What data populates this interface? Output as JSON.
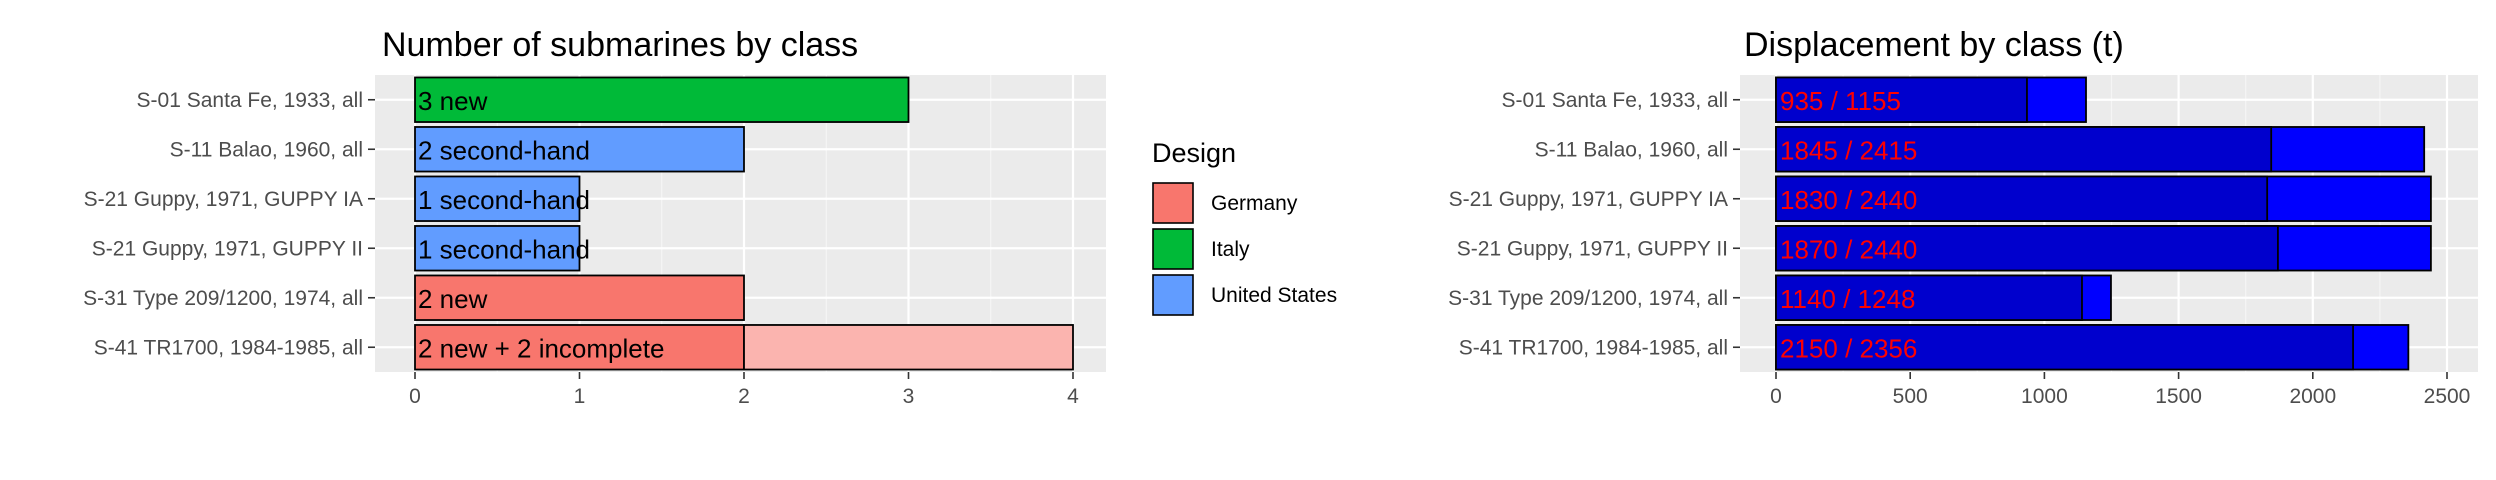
{
  "charts": [
    {
      "title": "Number of submarines by class"
    },
    {
      "title": "Displacement by class (t)"
    }
  ],
  "legend": {
    "title": "Design",
    "items": [
      {
        "label": "Germany",
        "color": "#F8766D"
      },
      {
        "label": "Italy",
        "color": "#00BA38"
      },
      {
        "label": "United States",
        "color": "#619CFF"
      }
    ]
  },
  "chart_data": [
    {
      "type": "bar",
      "orientation": "horizontal",
      "stacked": true,
      "title": "Number of submarines by class",
      "xlabel": "",
      "ylabel": "",
      "xlim": [
        0,
        4
      ],
      "x_ticks": [
        0,
        1,
        2,
        3,
        4
      ],
      "grid": true,
      "legend_position": "right",
      "categories": [
        "S-01 Santa Fe, 1933, all",
        "S-11 Balao, 1960, all",
        "S-21 Guppy, 1971, GUPPY IA",
        "S-21 Guppy, 1971, GUPPY II",
        "S-31 Type 209/1200, 1974, all",
        "S-41 TR1700, 1984-1985, all"
      ],
      "design": [
        "Italy",
        "United States",
        "United States",
        "United States",
        "Germany",
        "Germany"
      ],
      "series": [
        {
          "values": [
            3,
            2,
            1,
            1,
            2,
            2
          ]
        },
        {
          "values": [
            0,
            0,
            0,
            0,
            0,
            2
          ]
        }
      ],
      "bar_labels": [
        "3 new",
        "2 second-hand",
        "1 second-hand",
        "1 second-hand",
        "2 new",
        "2 new + 2 incomplete"
      ]
    },
    {
      "type": "bar",
      "orientation": "horizontal",
      "overlay": true,
      "title": "Displacement by class (t)",
      "xlabel": "",
      "ylabel": "",
      "xlim": [
        0,
        2500
      ],
      "x_ticks": [
        0,
        500,
        1000,
        1500,
        2000,
        2500
      ],
      "grid": true,
      "categories": [
        "S-01 Santa Fe, 1933, all",
        "S-11 Balao, 1960, all",
        "S-21 Guppy, 1971, GUPPY IA",
        "S-21 Guppy, 1971, GUPPY II",
        "S-31 Type 209/1200, 1974, all",
        "S-41 TR1700, 1984-1985, all"
      ],
      "series": [
        {
          "values": [
            935,
            1845,
            1830,
            1870,
            1140,
            2150
          ],
          "color": "#0000CD"
        },
        {
          "values": [
            1155,
            2415,
            2440,
            2440,
            1248,
            2356
          ],
          "color": "#0000FF"
        }
      ],
      "bar_labels": [
        "935 / 1155",
        "1845 / 2415",
        "1830 / 2440",
        "1870 / 2440",
        "1140 / 1248",
        "2150 / 2356"
      ],
      "label_color": "#FF0000"
    }
  ]
}
